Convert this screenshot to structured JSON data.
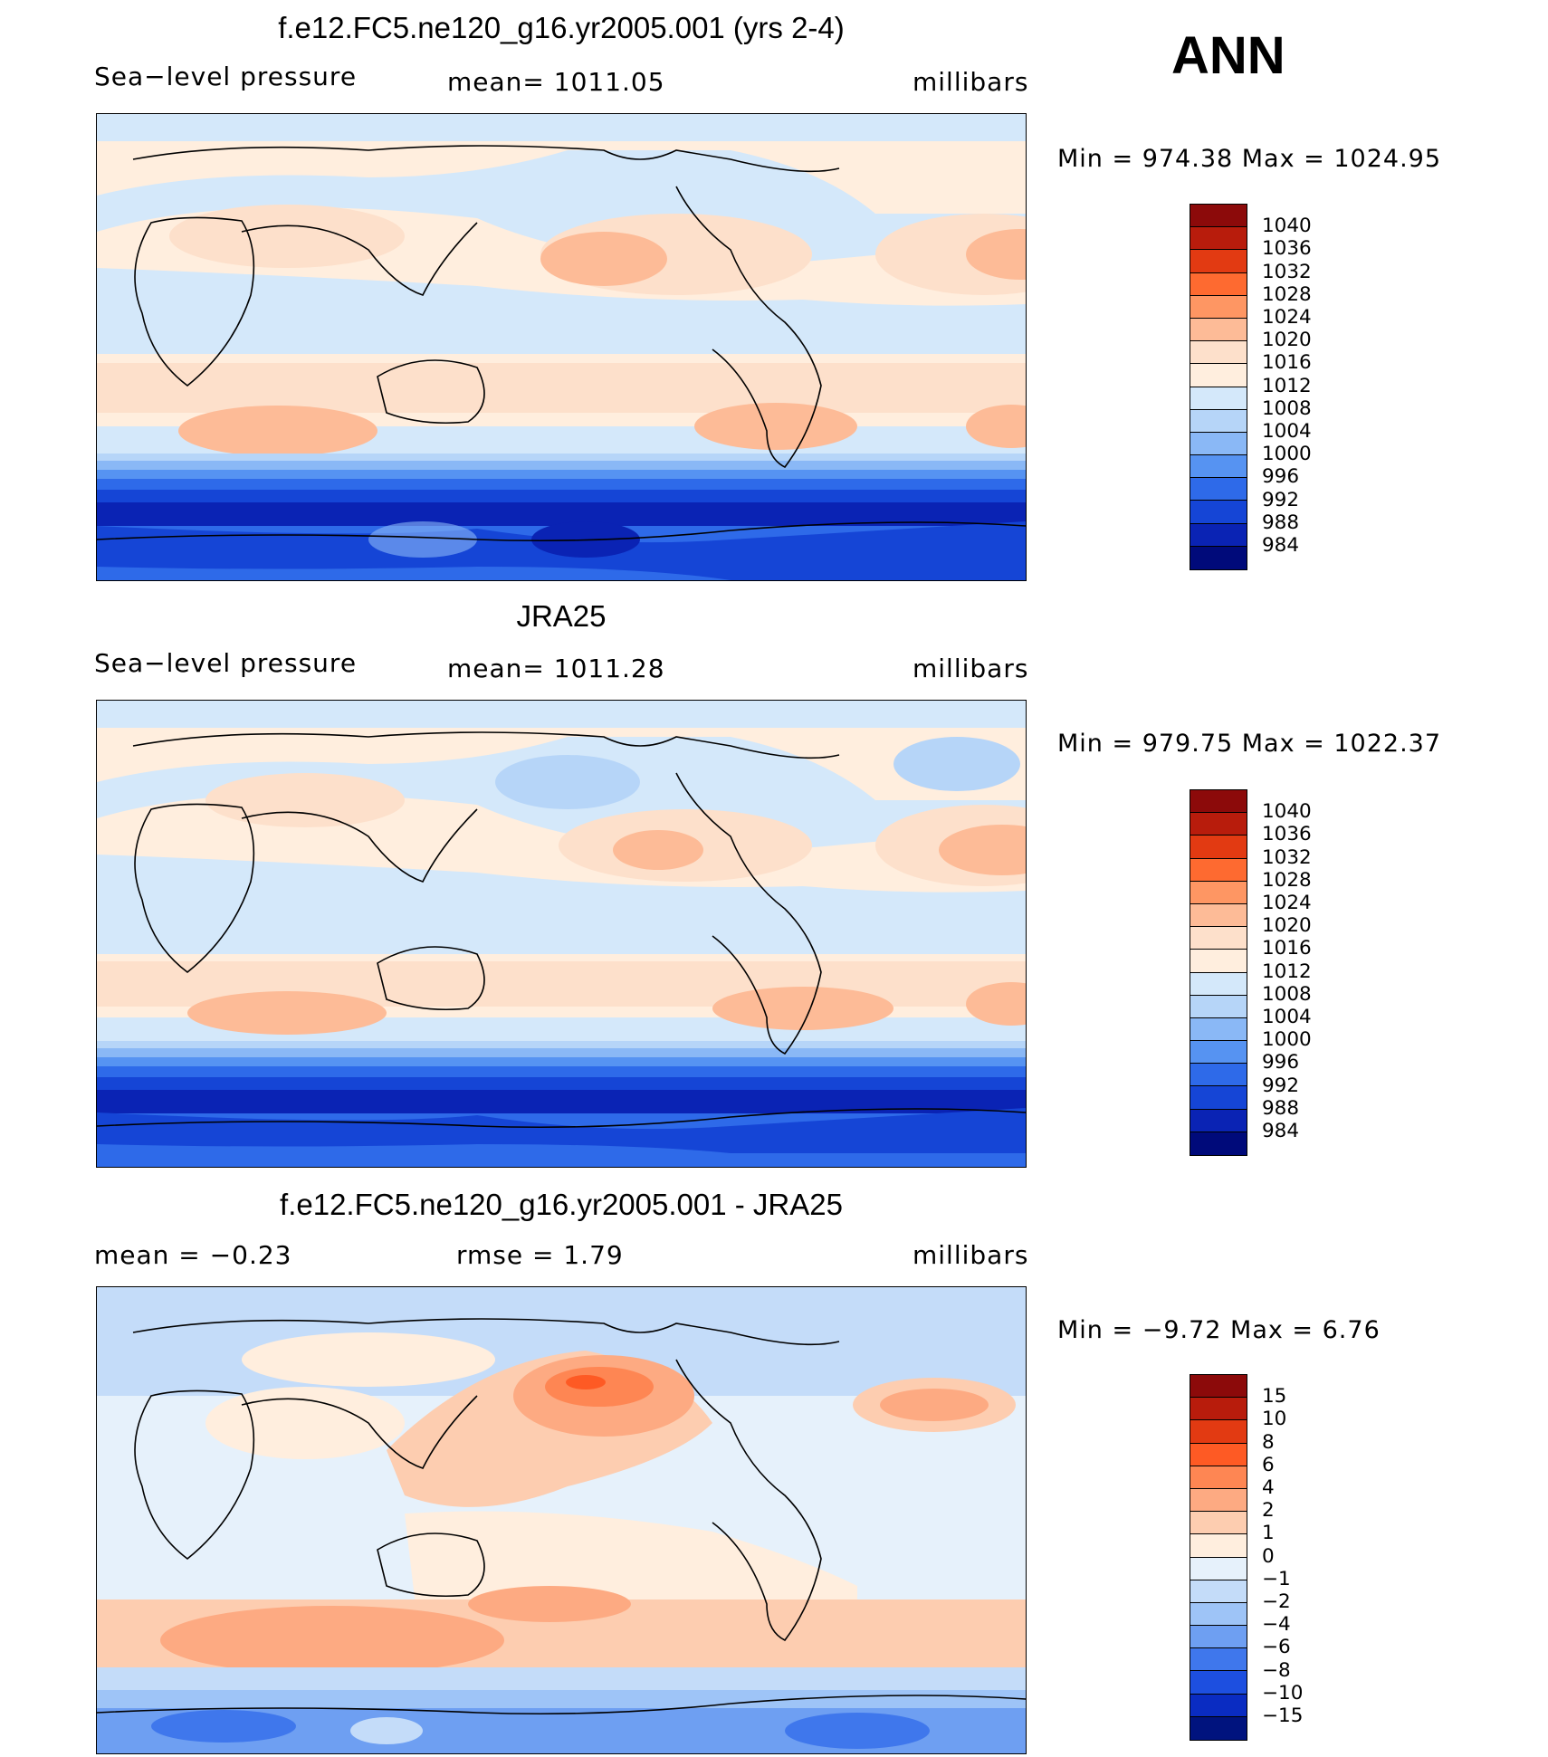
{
  "season": "ANN",
  "panels": [
    {
      "title": "f.e12.FC5.ne120_g16.yr2005.001 (yrs 2-4)",
      "left": "Sea−level pressure",
      "mid": "mean=  1011.05",
      "right": "millibars",
      "minmax": "Min  =  974.38  Max  =  1024.95"
    },
    {
      "title": "JRA25",
      "left": "Sea−level pressure",
      "mid": "mean=  1011.28",
      "right": "millibars",
      "minmax": "Min  =  979.75  Max  =  1022.37"
    },
    {
      "title": "f.e12.FC5.ne120_g16.yr2005.001 - JRA25",
      "left": "mean  =    −0.23",
      "mid": "rmse  =     1.79",
      "right": "millibars",
      "minmax": "Min  =   −9.72  Max  =     6.76"
    }
  ],
  "colorbar_abs": {
    "labels": [
      "1040",
      "1036",
      "1032",
      "1028",
      "1024",
      "1020",
      "1016",
      "1012",
      "1008",
      "1004",
      "1000",
      "996",
      "992",
      "988",
      "984"
    ],
    "colors": [
      "#8c0a0a",
      "#b81c0c",
      "#e23a12",
      "#fe6a30",
      "#fe9663",
      "#fdbb97",
      "#fde0cb",
      "#ffeede",
      "#d4e8fa",
      "#b6d5f8",
      "#8ab8f6",
      "#5693f2",
      "#2e6ae9",
      "#1545d6",
      "#0a23b4",
      "#000a7a"
    ]
  },
  "colorbar_diff": {
    "labels": [
      "15",
      "10",
      "8",
      "6",
      "4",
      "2",
      "1",
      "0",
      "−1",
      "−2",
      "−4",
      "−6",
      "−8",
      "−10",
      "−15"
    ],
    "colors": [
      "#8c0a0a",
      "#b81c0c",
      "#e23a12",
      "#fe5a24",
      "#fe8653",
      "#fdaa82",
      "#fdcdb0",
      "#ffeede",
      "#e6f1fb",
      "#c4dcf9",
      "#9ec4f7",
      "#6e9ff2",
      "#3f77ec",
      "#1d4fe0",
      "#0a2cc2",
      "#00137e"
    ]
  }
}
